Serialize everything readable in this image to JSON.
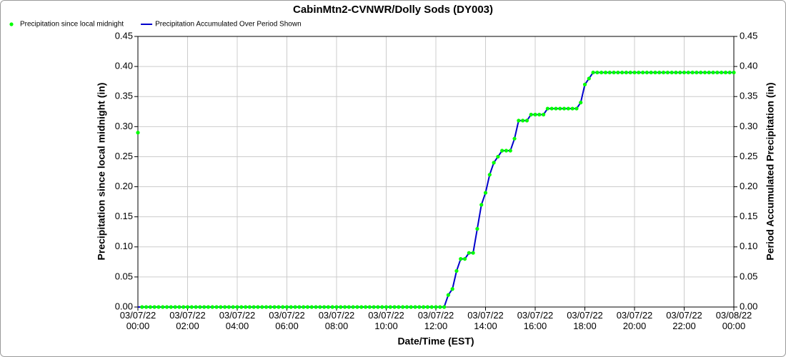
{
  "chart_data": {
    "type": "line",
    "title": "CabinMtn2-CVNWR/Dolly Sods (DY003)",
    "x_label": "Date/Time (EST)",
    "y_label": "Precipitation since local midnight (in)",
    "y2_label": "Period Accumulated Precipitation (in)",
    "x": [
      "03/07/22 00:00",
      "03/07/22 00:10",
      "03/07/22 00:20",
      "03/07/22 00:30",
      "03/07/22 00:40",
      "03/07/22 00:50",
      "03/07/22 01:00",
      "03/07/22 01:10",
      "03/07/22 01:20",
      "03/07/22 01:30",
      "03/07/22 01:40",
      "03/07/22 01:50",
      "03/07/22 02:00",
      "03/07/22 02:10",
      "03/07/22 02:20",
      "03/07/22 02:30",
      "03/07/22 02:40",
      "03/07/22 02:50",
      "03/07/22 03:00",
      "03/07/22 03:10",
      "03/07/22 03:20",
      "03/07/22 03:30",
      "03/07/22 03:40",
      "03/07/22 03:50",
      "03/07/22 04:00",
      "03/07/22 04:10",
      "03/07/22 04:20",
      "03/07/22 04:30",
      "03/07/22 04:40",
      "03/07/22 04:50",
      "03/07/22 05:00",
      "03/07/22 05:10",
      "03/07/22 05:20",
      "03/07/22 05:30",
      "03/07/22 05:40",
      "03/07/22 05:50",
      "03/07/22 06:00",
      "03/07/22 06:10",
      "03/07/22 06:20",
      "03/07/22 06:30",
      "03/07/22 06:40",
      "03/07/22 06:50",
      "03/07/22 07:00",
      "03/07/22 07:10",
      "03/07/22 07:20",
      "03/07/22 07:30",
      "03/07/22 07:40",
      "03/07/22 07:50",
      "03/07/22 08:00",
      "03/07/22 08:10",
      "03/07/22 08:20",
      "03/07/22 08:30",
      "03/07/22 08:40",
      "03/07/22 08:50",
      "03/07/22 09:00",
      "03/07/22 09:10",
      "03/07/22 09:20",
      "03/07/22 09:30",
      "03/07/22 09:40",
      "03/07/22 09:50",
      "03/07/22 10:00",
      "03/07/22 10:10",
      "03/07/22 10:20",
      "03/07/22 10:30",
      "03/07/22 10:40",
      "03/07/22 10:50",
      "03/07/22 11:00",
      "03/07/22 11:10",
      "03/07/22 11:20",
      "03/07/22 11:30",
      "03/07/22 11:40",
      "03/07/22 11:50",
      "03/07/22 12:00",
      "03/07/22 12:10",
      "03/07/22 12:20",
      "03/07/22 12:30",
      "03/07/22 12:40",
      "03/07/22 12:50",
      "03/07/22 13:00",
      "03/07/22 13:10",
      "03/07/22 13:20",
      "03/07/22 13:30",
      "03/07/22 13:40",
      "03/07/22 13:50",
      "03/07/22 14:00",
      "03/07/22 14:10",
      "03/07/22 14:20",
      "03/07/22 14:30",
      "03/07/22 14:40",
      "03/07/22 14:50",
      "03/07/22 15:00",
      "03/07/22 15:10",
      "03/07/22 15:20",
      "03/07/22 15:30",
      "03/07/22 15:40",
      "03/07/22 15:50",
      "03/07/22 16:00",
      "03/07/22 16:10",
      "03/07/22 16:20",
      "03/07/22 16:30",
      "03/07/22 16:40",
      "03/07/22 16:50",
      "03/07/22 17:00",
      "03/07/22 17:10",
      "03/07/22 17:20",
      "03/07/22 17:30",
      "03/07/22 17:40",
      "03/07/22 17:50",
      "03/07/22 18:00",
      "03/07/22 18:10",
      "03/07/22 18:20",
      "03/07/22 18:30",
      "03/07/22 18:40",
      "03/07/22 18:50",
      "03/07/22 19:00",
      "03/07/22 19:10",
      "03/07/22 19:20",
      "03/07/22 19:30",
      "03/07/22 19:40",
      "03/07/22 19:50",
      "03/07/22 20:00",
      "03/07/22 20:10",
      "03/07/22 20:20",
      "03/07/22 20:30",
      "03/07/22 20:40",
      "03/07/22 20:50",
      "03/07/22 21:00",
      "03/07/22 21:10",
      "03/07/22 21:20",
      "03/07/22 21:30",
      "03/07/22 21:40",
      "03/07/22 21:50",
      "03/07/22 22:00",
      "03/07/22 22:10",
      "03/07/22 22:20",
      "03/07/22 22:30",
      "03/07/22 22:40",
      "03/07/22 22:50",
      "03/07/22 23:00",
      "03/07/22 23:10",
      "03/07/22 23:20",
      "03/07/22 23:30",
      "03/07/22 23:40",
      "03/07/22 23:50",
      "03/08/22 00:00"
    ],
    "series": [
      {
        "name": "Precipitation since local midnight",
        "color": "#00ff00",
        "style": "dots",
        "values": [
          0.29,
          0,
          0,
          0,
          0,
          0,
          0,
          0,
          0,
          0,
          0,
          0,
          0,
          0,
          0,
          0,
          0,
          0,
          0,
          0,
          0,
          0,
          0,
          0,
          0,
          0,
          0,
          0,
          0,
          0,
          0,
          0,
          0,
          0,
          0,
          0,
          0,
          0,
          0,
          0,
          0,
          0,
          0,
          0,
          0,
          0,
          0,
          0,
          0,
          0,
          0,
          0,
          0,
          0,
          0,
          0,
          0,
          0,
          0,
          0,
          0,
          0,
          0,
          0,
          0,
          0,
          0,
          0,
          0,
          0,
          0,
          0,
          0,
          0,
          0,
          0.02,
          0.03,
          0.06,
          0.08,
          0.08,
          0.09,
          0.09,
          0.13,
          0.17,
          0.19,
          0.22,
          0.24,
          0.25,
          0.26,
          0.26,
          0.26,
          0.28,
          0.31,
          0.31,
          0.31,
          0.32,
          0.32,
          0.32,
          0.32,
          0.33,
          0.33,
          0.33,
          0.33,
          0.33,
          0.33,
          0.33,
          0.33,
          0.34,
          0.37,
          0.38,
          0.39,
          0.39,
          0.39,
          0.39,
          0.39,
          0.39,
          0.39,
          0.39,
          0.39,
          0.39,
          0.39,
          0.39,
          0.39,
          0.39,
          0.39,
          0.39,
          0.39,
          0.39,
          0.39,
          0.39,
          0.39,
          0.39,
          0.39,
          0.39,
          0.39,
          0.39,
          0.39,
          0.39,
          0.39,
          0.39,
          0.39,
          0.39,
          0.39,
          0.39,
          0.39
        ]
      },
      {
        "name": "Precipitation Accumulated Over Period Shown",
        "color": "#0000cc",
        "style": "line",
        "axis": "y2",
        "values": [
          0,
          0,
          0,
          0,
          0,
          0,
          0,
          0,
          0,
          0,
          0,
          0,
          0,
          0,
          0,
          0,
          0,
          0,
          0,
          0,
          0,
          0,
          0,
          0,
          0,
          0,
          0,
          0,
          0,
          0,
          0,
          0,
          0,
          0,
          0,
          0,
          0,
          0,
          0,
          0,
          0,
          0,
          0,
          0,
          0,
          0,
          0,
          0,
          0,
          0,
          0,
          0,
          0,
          0,
          0,
          0,
          0,
          0,
          0,
          0,
          0,
          0,
          0,
          0,
          0,
          0,
          0,
          0,
          0,
          0,
          0,
          0,
          0,
          0,
          0,
          0.02,
          0.03,
          0.06,
          0.08,
          0.08,
          0.09,
          0.09,
          0.13,
          0.17,
          0.19,
          0.22,
          0.24,
          0.25,
          0.26,
          0.26,
          0.26,
          0.28,
          0.31,
          0.31,
          0.31,
          0.32,
          0.32,
          0.32,
          0.32,
          0.33,
          0.33,
          0.33,
          0.33,
          0.33,
          0.33,
          0.33,
          0.33,
          0.34,
          0.37,
          0.38,
          0.39,
          0.39,
          0.39,
          0.39,
          0.39,
          0.39,
          0.39,
          0.39,
          0.39,
          0.39,
          0.39,
          0.39,
          0.39,
          0.39,
          0.39,
          0.39,
          0.39,
          0.39,
          0.39,
          0.39,
          0.39,
          0.39,
          0.39,
          0.39,
          0.39,
          0.39,
          0.39,
          0.39,
          0.39,
          0.39,
          0.39,
          0.39,
          0.39,
          0.39,
          0.39
        ]
      }
    ],
    "xlim": [
      "03/07/22 00:00",
      "03/08/22 00:00"
    ],
    "xticks": [
      "03/07/22 00:00",
      "03/07/22 02:00",
      "03/07/22 04:00",
      "03/07/22 06:00",
      "03/07/22 08:00",
      "03/07/22 10:00",
      "03/07/22 12:00",
      "03/07/22 14:00",
      "03/07/22 16:00",
      "03/07/22 18:00",
      "03/07/22 20:00",
      "03/07/22 22:00",
      "03/08/22 00:00"
    ],
    "ylim": [
      0,
      0.45
    ],
    "yticks": [
      {
        "value": 0,
        "label": "0.00"
      },
      {
        "value": 0.05,
        "label": "0.05"
      },
      {
        "value": 0.1,
        "label": "0.10"
      },
      {
        "value": 0.15,
        "label": "0.15"
      },
      {
        "value": 0.2,
        "label": "0.20"
      },
      {
        "value": 0.25,
        "label": "0.25"
      },
      {
        "value": 0.3,
        "label": "0.30"
      },
      {
        "value": 0.35,
        "label": "0.35"
      },
      {
        "value": 0.4,
        "label": "0.40"
      },
      {
        "value": 0.45,
        "label": "0.45"
      }
    ],
    "y2lim": [
      0,
      0.45
    ],
    "y2ticks": [
      {
        "value": 0,
        "label": "0.00"
      },
      {
        "value": 0.05,
        "label": "0.05"
      },
      {
        "value": 0.1,
        "label": "0.10"
      },
      {
        "value": 0.15,
        "label": "0.15"
      },
      {
        "value": 0.2,
        "label": "0.20"
      },
      {
        "value": 0.25,
        "label": "0.25"
      },
      {
        "value": 0.3,
        "label": "0.30"
      },
      {
        "value": 0.35,
        "label": "0.35"
      },
      {
        "value": 0.4,
        "label": "0.40"
      },
      {
        "value": 0.45,
        "label": "0.45"
      }
    ],
    "grid": true,
    "legend": "top-left"
  }
}
